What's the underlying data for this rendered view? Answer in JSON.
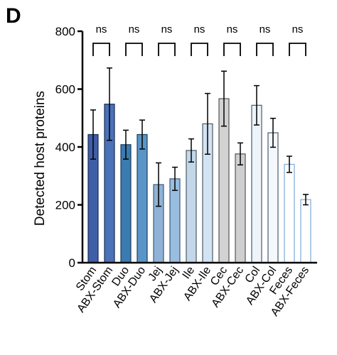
{
  "panel_label": "D",
  "chart_data": {
    "type": "bar",
    "title": "",
    "xlabel": "",
    "ylabel": "Detected host proteins",
    "ylim": [
      0,
      800
    ],
    "yticks": [
      "0",
      "200",
      "400",
      "600",
      "800"
    ],
    "grid": false,
    "categories": [
      "Stom",
      "ABX-Stom",
      "Duo",
      "ABX-Duo",
      "Jej",
      "ABX-Jej",
      "Ile",
      "ABX-Ile",
      "Cec",
      "ABX-Cec",
      "Col",
      "ABX-Col",
      "Feces",
      "ABX-Feces"
    ],
    "values": [
      443,
      548,
      408,
      443,
      270,
      290,
      388,
      480,
      567,
      376,
      544,
      449,
      340,
      218
    ],
    "errors": [
      85,
      125,
      50,
      50,
      75,
      40,
      40,
      105,
      95,
      38,
      68,
      50,
      28,
      18
    ],
    "bar_colors": [
      "#3f5ea8",
      "#4a72b8",
      "#3a7bb0",
      "#5b95c8",
      "#8fb2d6",
      "#98bddf",
      "#c3d7e9",
      "#d3e3f1",
      "#d2d2d2",
      "#cfcfcf",
      "#eef4fa",
      "#f4f8fc",
      "#ffffff",
      "#ffffff"
    ],
    "bar_edge_colors": [
      "#1c2c55",
      "#1c2c55",
      "#1c3c5c",
      "#1c3c5c",
      "#3f5a78",
      "#3f5a78",
      "#4a5a68",
      "#4a5a68",
      "#555555",
      "#555555",
      "#4a5a68",
      "#4a5a68",
      "#7aaad8",
      "#7aaad8"
    ],
    "comparisons": [
      {
        "pair": [
          "Stom",
          "ABX-Stom"
        ],
        "label": "ns"
      },
      {
        "pair": [
          "Duo",
          "ABX-Duo"
        ],
        "label": "ns"
      },
      {
        "pair": [
          "Jej",
          "ABX-Jej"
        ],
        "label": "ns"
      },
      {
        "pair": [
          "Ile",
          "ABX-Ile"
        ],
        "label": "ns"
      },
      {
        "pair": [
          "Cec",
          "ABX-Cec"
        ],
        "label": "ns"
      },
      {
        "pair": [
          "Col",
          "ABX-Col"
        ],
        "label": "ns"
      },
      {
        "pair": [
          "Feces",
          "ABX-Feces"
        ],
        "label": "ns"
      }
    ]
  }
}
